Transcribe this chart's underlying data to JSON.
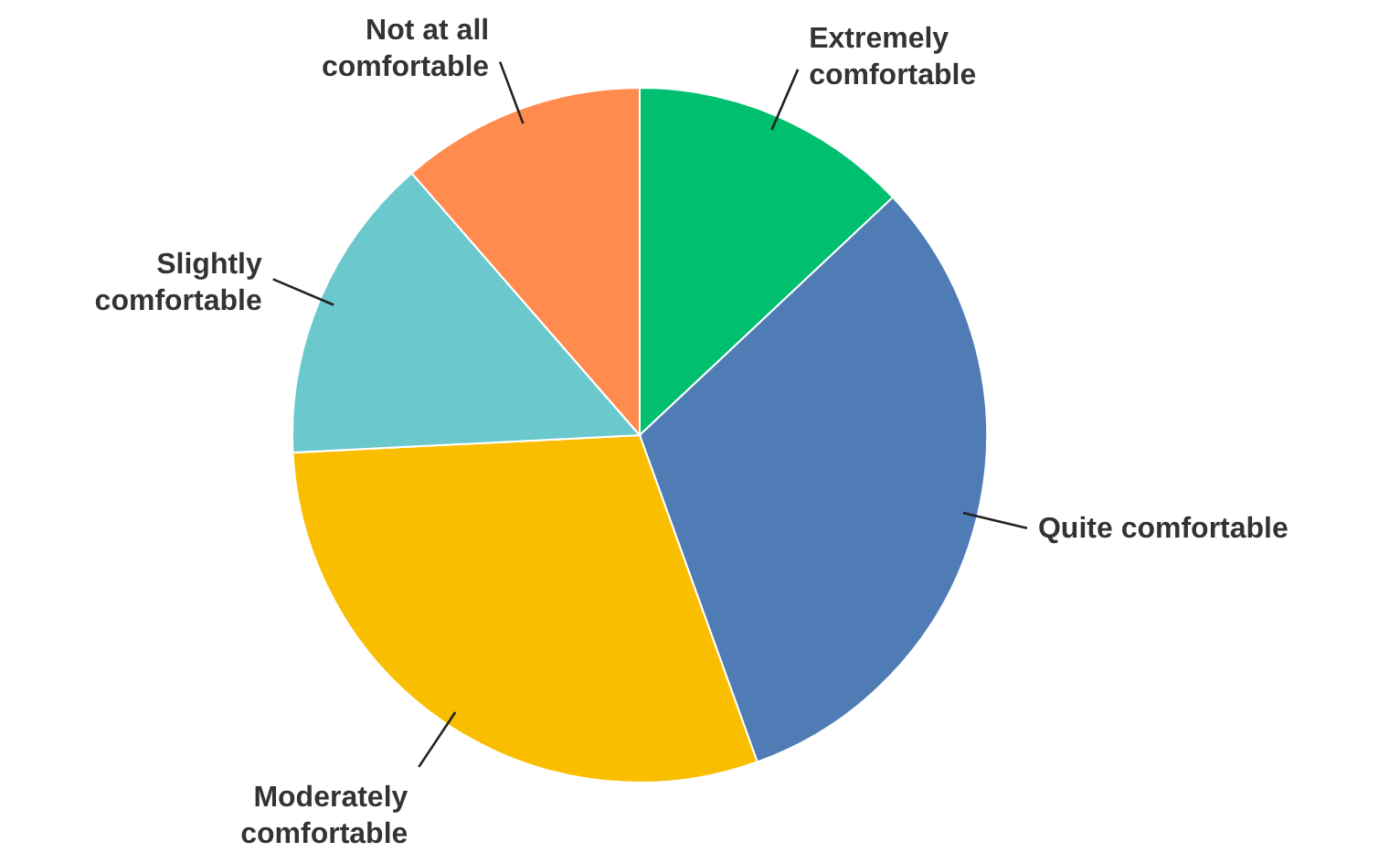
{
  "chart_data": {
    "type": "pie",
    "categories": [
      "Extremely comfortable",
      "Quite comfortable",
      "Moderately comfortable",
      "Slightly comfortable",
      "Not at all comfortable"
    ],
    "values": [
      13,
      31.5,
      29.7,
      14.4,
      11.4
    ],
    "colors": [
      "#00bf6f",
      "#507cb6",
      "#f9be00",
      "#6bc8cd",
      "#ff8b4f"
    ]
  }
}
